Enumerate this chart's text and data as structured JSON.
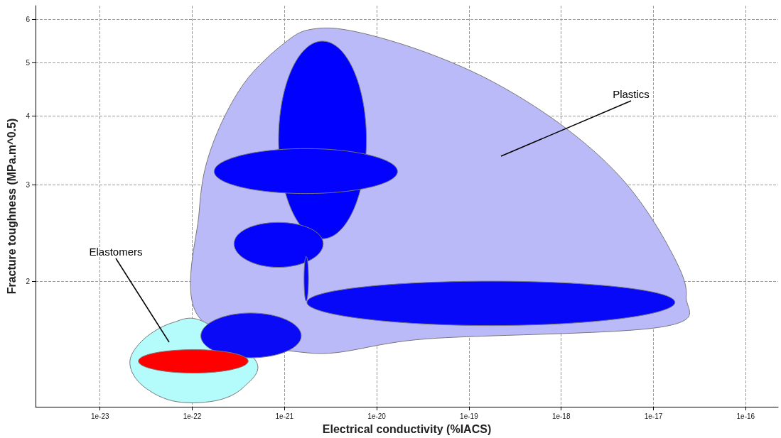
{
  "chart_data": {
    "type": "area",
    "xlabel": "Electrical conductivity (%IACS)",
    "ylabel": "Fracture toughness (MPa.m^0.5)",
    "log": "xy",
    "xlim": [
      2e-24,
      2.25e-16
    ],
    "ylim": [
      1.18,
      6.36
    ],
    "xticks": [
      {
        "value": 1e-23,
        "label": "1e-23"
      },
      {
        "value": 1e-22,
        "label": "1e-22"
      },
      {
        "value": 1e-21,
        "label": "1e-21"
      },
      {
        "value": 1e-20,
        "label": "1e-20"
      },
      {
        "value": 1e-19,
        "label": "1e-19"
      },
      {
        "value": 1e-18,
        "label": "1e-18"
      },
      {
        "value": 1e-17,
        "label": "1e-17"
      },
      {
        "value": 1e-16,
        "label": "1e-16"
      }
    ],
    "yticks": [
      2,
      3,
      4,
      5,
      6
    ],
    "grid": true,
    "annotations": [
      "Plastics",
      "Elastomers"
    ],
    "series": [
      {
        "color": "#babaf8",
        "x": [
          1.18e-22,
          1.19e-22,
          1.61e-22,
          3.57e-22,
          1.03e-21,
          2.09e-21,
          6e-21,
          3.5e-20,
          2.05e-19,
          1.2e-18,
          5e-18,
          1.46e-17,
          2.27e-17,
          1.22e-17,
          3.5e-20,
          1.8e-21
        ],
        "values": [
          1.72,
          2.68,
          3.5,
          4.57,
          5.46,
          5.77,
          5.7,
          5.22,
          4.57,
          3.77,
          3.02,
          2.31,
          1.88,
          1.65,
          1.57,
          1.48
        ]
      },
      {
        "color": "#b4fcfc",
        "x": [
          2.11e-23,
          3.01e-23,
          6.1e-23,
          1.3e-22,
          4.91e-22,
          3.57e-22,
          1.76e-22,
          6.1e-23,
          2.75e-23
        ],
        "values": [
          1.43,
          1.57,
          1.68,
          1.69,
          1.43,
          1.28,
          1.21,
          1.21,
          1.3
        ]
      },
      {
        "color": "#0000ff",
        "x": [
          8.63e-22,
          2.58e-21,
          7.73e-21,
          2.58e-21
        ],
        "values": [
          3.62,
          5.48,
          3.62,
          2.39
        ]
      },
      {
        "color": "#0202fe",
        "x": [
          1.73e-22,
          1.7e-21,
          1.68e-20,
          1.7e-21
        ],
        "values": [
          3.17,
          3.49,
          3.17,
          2.89
        ]
      },
      {
        "color": "#0404fc",
        "x": [
          2.84e-22,
          8.6e-22,
          2.63e-21,
          8.6e-22
        ],
        "values": [
          2.34,
          2.56,
          2.34,
          2.12
        ]
      },
      {
        "color": "#0606fa",
        "x": [
          1.63e-21,
          1.72e-21,
          1.82e-21,
          1.72e-21
        ],
        "values": [
          2.02,
          2.22,
          2.02,
          1.84
        ]
      },
      {
        "color": "#0808f8",
        "x": [
          1.75e-21,
          1.73e-19,
          1.71e-17,
          1.73e-19
        ],
        "values": [
          1.83,
          2.0,
          1.83,
          1.66
        ]
      },
      {
        "color": "#0a0af6",
        "x": [
          1.24e-22,
          4.3e-22,
          1.52e-21,
          4.3e-22
        ],
        "values": [
          1.59,
          1.75,
          1.59,
          1.45
        ]
      },
      {
        "color": "#ff0000",
        "x": [
          2.61e-23,
          1.03e-22,
          4.04e-22,
          1.03e-22
        ],
        "values": [
          1.43,
          1.5,
          1.43,
          1.36
        ]
      }
    ]
  }
}
